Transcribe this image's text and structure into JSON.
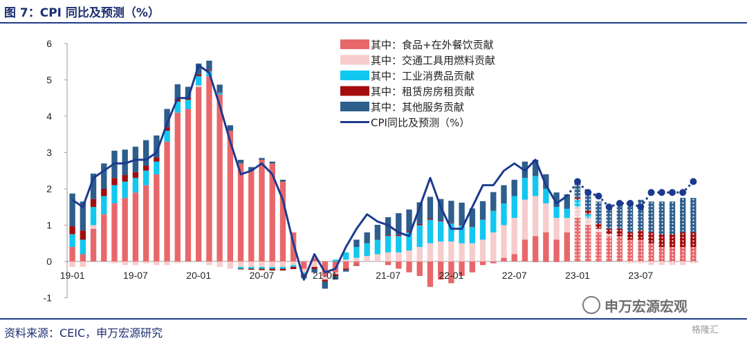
{
  "header": {
    "title": "图 7：CPI 同比及预测（%）"
  },
  "footer": {
    "source": "资料来源：CEIC，申万宏源研究"
  },
  "watermark": {
    "text": "申万宏源宏观",
    "corner": "格隆汇"
  },
  "chart_data": {
    "type": "bar",
    "stacked": true,
    "ylim": [
      -1,
      6
    ],
    "yticks": [
      "-1",
      "0",
      "1",
      "2",
      "3",
      "4",
      "5",
      "6"
    ],
    "xtick_labels": [
      {
        "index": 0,
        "label": "19-01"
      },
      {
        "index": 6,
        "label": "19-07"
      },
      {
        "index": 12,
        "label": "20-01"
      },
      {
        "index": 18,
        "label": "20-07"
      },
      {
        "index": 24,
        "label": "21-01"
      },
      {
        "index": 30,
        "label": "21-07"
      },
      {
        "index": 36,
        "label": "22-01"
      },
      {
        "index": 42,
        "label": "22-07"
      },
      {
        "index": 48,
        "label": "23-01"
      },
      {
        "index": 54,
        "label": "23-07"
      }
    ],
    "n_periods": 60,
    "forecast_start_index": 48,
    "series": [
      {
        "name": "其中：食品+在外餐饮贡献",
        "color": "#e8676a",
        "values": [
          0.4,
          0.2,
          0.9,
          1.3,
          1.6,
          1.75,
          1.9,
          2.1,
          2.4,
          3.3,
          4.1,
          4.2,
          4.8,
          5.1,
          4.6,
          3.6,
          2.7,
          2.5,
          2.8,
          2.7,
          2.2,
          0.8,
          -0.2,
          0.1,
          -0.4,
          -0.3,
          -0.2,
          -0.1,
          0.0,
          0.0,
          -0.1,
          -0.2,
          -0.3,
          -0.4,
          -0.7,
          -0.5,
          -0.6,
          -0.4,
          -0.3,
          -0.1,
          -0.05,
          0.1,
          0.2,
          0.6,
          0.7,
          0.8,
          0.6,
          0.8,
          1.2,
          1.0,
          0.8,
          0.7,
          0.7,
          0.6,
          0.6,
          0.5,
          0.4,
          0.4,
          0.4,
          0.4
        ]
      },
      {
        "name": "其中：交通工具用燃料贡献",
        "color": "#f6cccc",
        "values": [
          -0.15,
          -0.15,
          0.1,
          0.0,
          -0.05,
          -0.1,
          -0.1,
          -0.05,
          -0.1,
          -0.1,
          -0.05,
          0.0,
          0.05,
          -0.1,
          -0.15,
          -0.2,
          -0.15,
          -0.15,
          -0.15,
          -0.15,
          -0.15,
          -0.1,
          -0.1,
          -0.15,
          -0.1,
          -0.05,
          0.05,
          0.1,
          0.15,
          0.2,
          0.25,
          0.25,
          0.3,
          0.4,
          0.5,
          0.55,
          0.55,
          0.5,
          0.5,
          0.6,
          0.8,
          0.9,
          1.0,
          1.1,
          1.1,
          0.8,
          0.6,
          0.4,
          0.3,
          0.2,
          0.1,
          0.05,
          0.0,
          -0.05,
          -0.05,
          -0.1,
          -0.1,
          -0.1,
          -0.1,
          -0.05
        ]
      },
      {
        "name": "其中：工业消费品贡献",
        "color": "#12c8f0",
        "values": [
          0.35,
          0.4,
          0.5,
          0.5,
          0.5,
          0.45,
          0.4,
          0.4,
          0.35,
          0.3,
          0.3,
          0.25,
          0.25,
          0.15,
          0.05,
          0.0,
          -0.05,
          -0.05,
          -0.05,
          -0.05,
          -0.05,
          -0.05,
          -0.05,
          0.0,
          0.0,
          0.05,
          0.2,
          0.3,
          0.35,
          0.4,
          0.45,
          0.45,
          0.5,
          0.6,
          0.65,
          0.55,
          0.5,
          0.5,
          0.45,
          0.55,
          0.6,
          0.6,
          0.6,
          0.6,
          0.55,
          0.4,
          0.3,
          0.25,
          0.2,
          0.1,
          0.0,
          0.0,
          0.0,
          0.0,
          0.0,
          0.0,
          0.0,
          0.0,
          0.0,
          0.0
        ]
      },
      {
        "name": "其中：租赁房房租贡献",
        "color": "#a30d0d",
        "values": [
          0.22,
          0.25,
          0.22,
          0.2,
          0.2,
          0.18,
          0.16,
          0.14,
          0.12,
          0.1,
          0.08,
          0.06,
          0.05,
          0.03,
          0.02,
          0.0,
          -0.02,
          -0.03,
          -0.04,
          -0.05,
          -0.05,
          -0.06,
          -0.06,
          -0.05,
          -0.05,
          -0.05,
          -0.03,
          -0.02,
          0.0,
          0.01,
          0.02,
          0.03,
          0.03,
          0.03,
          0.03,
          0.02,
          0.02,
          0.02,
          0.01,
          0.01,
          0.01,
          0.0,
          0.0,
          0.0,
          -0.01,
          -0.01,
          -0.01,
          0.0,
          0.05,
          0.1,
          0.15,
          0.15,
          0.2,
          0.2,
          0.25,
          0.3,
          0.35,
          0.35,
          0.4,
          0.4
        ]
      },
      {
        "name": "其中：其他服务贡献",
        "color": "#2e5e8c",
        "values": [
          0.9,
          0.8,
          0.7,
          0.7,
          0.75,
          0.7,
          0.7,
          0.7,
          0.6,
          0.5,
          0.4,
          0.3,
          0.3,
          0.25,
          0.2,
          0.15,
          0.1,
          0.1,
          0.05,
          0.05,
          0.05,
          0.0,
          -0.05,
          -0.1,
          -0.2,
          -0.1,
          -0.05,
          0.2,
          0.3,
          0.4,
          0.5,
          0.6,
          0.6,
          0.6,
          0.6,
          0.6,
          0.6,
          0.6,
          0.5,
          0.5,
          0.5,
          0.5,
          0.45,
          0.45,
          0.45,
          0.4,
          0.4,
          0.4,
          0.5,
          0.5,
          0.6,
          0.6,
          0.7,
          0.8,
          0.85,
          0.85,
          0.9,
          0.9,
          0.95,
          0.95
        ]
      },
      {
        "name": "CPI同比及预测（%）",
        "type": "line",
        "color": "#1c3a8e",
        "values": [
          1.7,
          1.5,
          2.3,
          2.5,
          2.7,
          2.7,
          2.8,
          2.8,
          3.0,
          3.8,
          4.5,
          4.5,
          5.4,
          5.2,
          4.3,
          3.3,
          2.4,
          2.5,
          2.7,
          2.4,
          1.7,
          0.5,
          -0.5,
          0.2,
          -0.3,
          -0.2,
          0.4,
          0.9,
          1.3,
          1.1,
          1.0,
          0.8,
          0.7,
          1.5,
          2.3,
          1.5,
          0.9,
          0.9,
          1.5,
          2.1,
          2.1,
          2.5,
          2.7,
          2.5,
          2.8,
          2.1,
          1.6,
          1.8,
          2.2,
          1.9,
          1.8,
          1.5,
          1.6,
          1.6,
          1.5,
          1.9,
          1.9,
          1.9,
          1.9,
          2.2
        ]
      }
    ]
  }
}
